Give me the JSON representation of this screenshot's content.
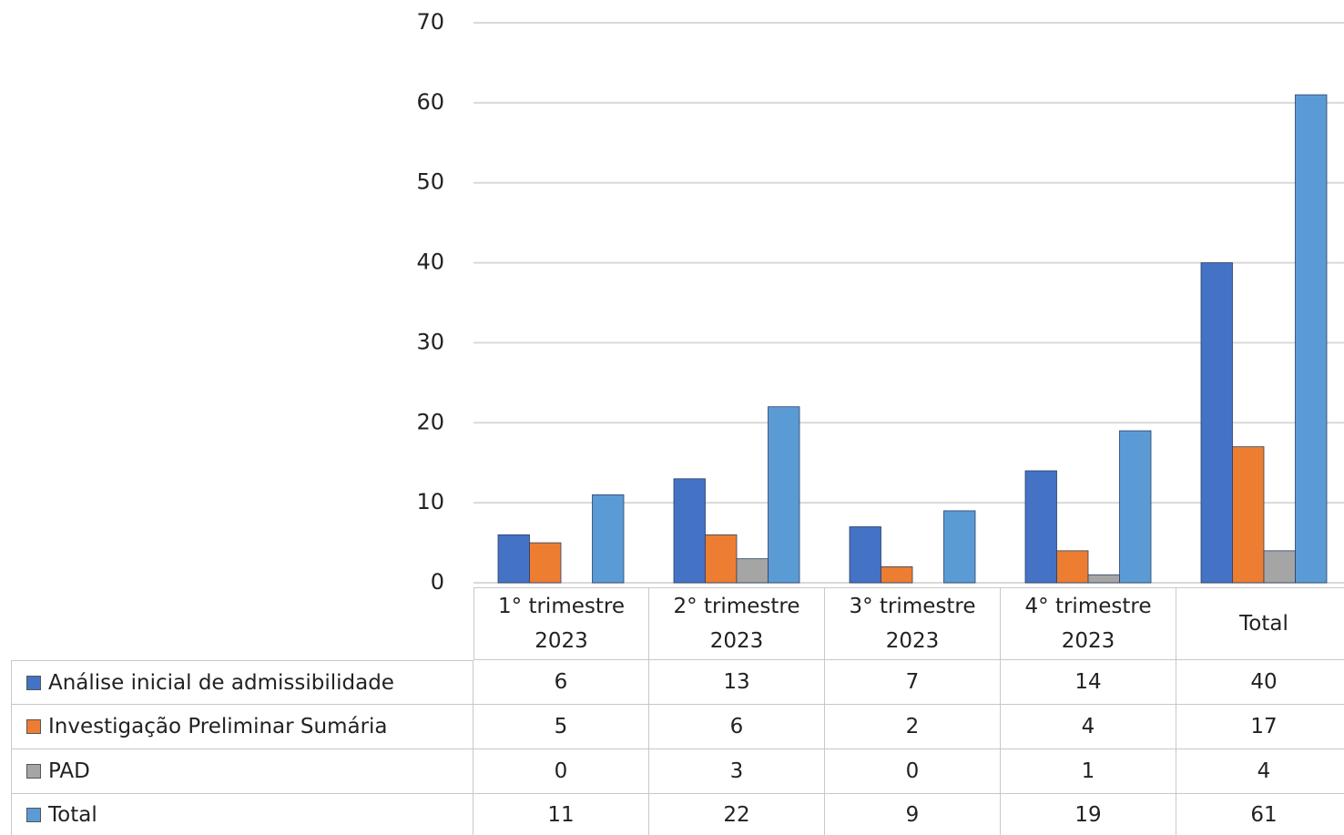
{
  "chart_data": {
    "type": "bar",
    "categories": [
      "1° trimestre 2023",
      "2° trimestre 2023",
      "3° trimestre 2023",
      "4° trimestre 2023",
      "Total"
    ],
    "series": [
      {
        "name": "Análise inicial de admissibilidade",
        "color": "#4472c4",
        "values": [
          6,
          13,
          7,
          14,
          40
        ]
      },
      {
        "name": "Investigação Preliminar Sumária",
        "color": "#ed7d31",
        "values": [
          5,
          6,
          2,
          4,
          17
        ]
      },
      {
        "name": "PAD",
        "color": "#a5a5a5",
        "values": [
          0,
          3,
          0,
          1,
          4
        ]
      },
      {
        "name": "Total",
        "color": "#5b9bd5",
        "values": [
          11,
          22,
          9,
          19,
          61
        ]
      }
    ],
    "ylim": [
      0,
      70
    ],
    "yticks": [
      0,
      10,
      20,
      30,
      40,
      50,
      60,
      70
    ],
    "grid": true
  }
}
